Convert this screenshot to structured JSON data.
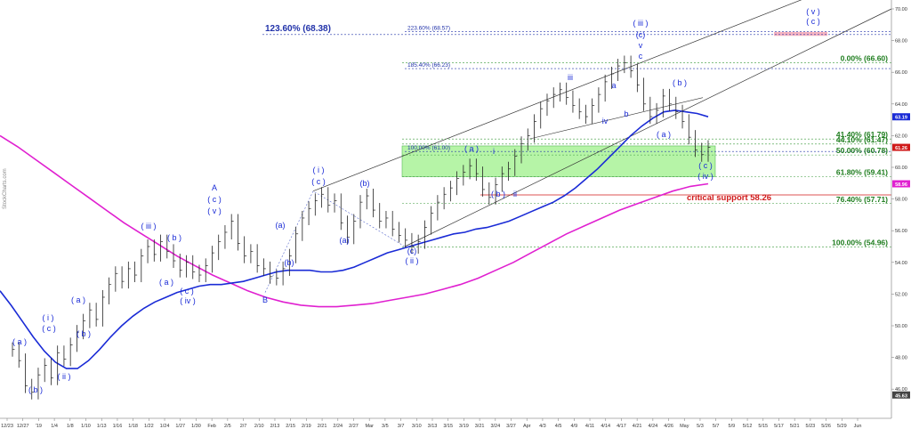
{
  "chart_data": {
    "type": "line",
    "ylim": [
      45,
      70
    ],
    "grid": false,
    "watermark": "StockCharts.com",
    "y_ticks": [
      "70.00",
      "68.00",
      "66.00",
      "64.00",
      "62.00",
      "60.00",
      "58.00",
      "56.00",
      "54.00",
      "52.00",
      "50.00",
      "48.00",
      "46.00"
    ],
    "x_ticks": [
      "12/23",
      "12/27",
      "'19",
      "1/4",
      "1/8",
      "1/10",
      "1/13",
      "1/16",
      "1/18",
      "1/22",
      "1/24",
      "1/27",
      "1/30",
      "Feb",
      "2/5",
      "2/7",
      "2/10",
      "2/13",
      "2/15",
      "2/19",
      "2/21",
      "2/24",
      "2/27",
      "Mar",
      "3/5",
      "3/7",
      "3/10",
      "3/13",
      "3/15",
      "3/19",
      "3/21",
      "3/24",
      "3/27",
      "Apr",
      "4/3",
      "4/5",
      "4/9",
      "4/11",
      "4/14",
      "4/17",
      "4/21",
      "4/24",
      "4/26",
      "May",
      "5/3",
      "5/7",
      "5/9",
      "5/12",
      "5/15",
      "5/17",
      "5/21",
      "5/23",
      "5/26",
      "5/29",
      "Jun"
    ],
    "price_tags": [
      {
        "text": "63.19",
        "value": 63.19,
        "color": "#1a2bd6"
      },
      {
        "text": "61.26",
        "value": 61.26,
        "color": "#d01a1a"
      },
      {
        "text": "58.96",
        "value": 58.96,
        "color": "#e020d0"
      },
      {
        "text": "45.63",
        "value": 45.63,
        "color": "#444444"
      }
    ],
    "fib_levels_right": [
      {
        "text": "0.00% (66.60)",
        "value": 66.6
      },
      {
        "text": "41.40% (61.79)",
        "value": 61.79
      },
      {
        "text": "44.10% (61.47)",
        "value": 61.47
      },
      {
        "text": "50.00% (60.78)",
        "value": 60.78
      },
      {
        "text": "61.80% (59.41)",
        "value": 59.41
      },
      {
        "text": "76.40% (57.71)",
        "value": 57.71
      },
      {
        "text": "100.00% (54.96)",
        "value": 54.96
      }
    ],
    "fib_levels_blue": [
      {
        "text": "223.60% (68.57)",
        "value": 68.57
      },
      {
        "text": "185.40% (66.23)",
        "value": 66.23
      },
      {
        "text": "100.00% (61.00)",
        "value": 61.0
      }
    ],
    "big_label": "123.60% (68.38)",
    "critical_support": {
      "text": "critical support 58.26",
      "value": 58.26
    },
    "series": [
      {
        "name": "price",
        "color": "#222222",
        "values": [
          48.5,
          47.8,
          46.2,
          45.8,
          46.9,
          47.5,
          46.7,
          48.3,
          47.9,
          48.8,
          49.6,
          50.3,
          51.0,
          50.4,
          51.8,
          52.6,
          53.3,
          52.8,
          53.6,
          53.2,
          54.4,
          55.0,
          54.5,
          55.3,
          54.7,
          54.1,
          53.5,
          54.0,
          53.4,
          53.2,
          53.8,
          54.6,
          55.3,
          55.9,
          56.6,
          55.2,
          54.4,
          54.7,
          53.8,
          53.6,
          53.1,
          53.0,
          53.6,
          54.4,
          55.8,
          56.8,
          57.4,
          57.9,
          58.3,
          57.6,
          57.9,
          56.5,
          55.6,
          56.6,
          57.8,
          58.2,
          57.3,
          56.6,
          56.8,
          56.1,
          55.7,
          55.4,
          55.0,
          55.3,
          56.2,
          57.1,
          57.8,
          58.3,
          58.7,
          59.3,
          59.7,
          60.1,
          59.6,
          58.6,
          58.1,
          58.9,
          59.6,
          59.9,
          60.7,
          61.5,
          62.0,
          62.9,
          63.7,
          64.2,
          64.6,
          64.9,
          64.4,
          63.9,
          63.5,
          63.2,
          63.9,
          64.6,
          65.4,
          65.9,
          66.4,
          66.6,
          66.1,
          65.2,
          64.0,
          63.2,
          63.6,
          64.5,
          64.0,
          63.5,
          62.9,
          61.9,
          61.1,
          60.8,
          61.26
        ]
      },
      {
        "name": "ma50",
        "color": "#1a2bd6",
        "values": [
          52.2,
          51.3,
          50.3,
          49.3,
          48.4,
          47.7,
          47.3,
          47.3,
          47.8,
          48.5,
          49.3,
          50.0,
          50.6,
          51.1,
          51.5,
          51.8,
          52.1,
          52.3,
          52.5,
          52.6,
          52.6,
          52.7,
          52.8,
          53.0,
          53.2,
          53.4,
          53.5,
          53.5,
          53.5,
          53.4,
          53.4,
          53.5,
          53.7,
          54.0,
          54.3,
          54.6,
          54.8,
          55.0,
          55.2,
          55.4,
          55.6,
          55.8,
          55.9,
          56.1,
          56.2,
          56.4,
          56.6,
          56.9,
          57.2,
          57.5,
          57.8,
          58.2,
          58.7,
          59.3,
          59.9,
          60.6,
          61.3,
          62.0,
          62.6,
          63.1,
          63.5,
          63.6,
          63.5,
          63.4,
          63.19
        ]
      },
      {
        "name": "ma200",
        "color": "#e020d0",
        "values": [
          62.0,
          61.3,
          60.5,
          59.7,
          58.9,
          58.1,
          57.3,
          56.5,
          55.8,
          55.1,
          54.4,
          53.8,
          53.2,
          52.7,
          52.2,
          51.8,
          51.5,
          51.3,
          51.2,
          51.2,
          51.3,
          51.4,
          51.6,
          51.8,
          52.0,
          52.3,
          52.6,
          53.0,
          53.5,
          54.0,
          54.6,
          55.2,
          55.8,
          56.3,
          56.8,
          57.3,
          57.7,
          58.1,
          58.5,
          58.8,
          58.96
        ]
      }
    ],
    "wave_labels": [
      {
        "text": "( a )",
        "color": "blue"
      },
      {
        "text": "( b )",
        "color": "blue"
      },
      {
        "text": "( i )",
        "color": "blue"
      },
      {
        "text": "( c )",
        "color": "blue"
      },
      {
        "text": "( ii )",
        "color": "blue"
      },
      {
        "text": "( a )",
        "color": "blue"
      },
      {
        "text": "( b )",
        "color": "blue"
      },
      {
        "text": "( iii )",
        "color": "blue"
      },
      {
        "text": "( b )",
        "color": "blue"
      },
      {
        "text": "( a )",
        "color": "blue"
      },
      {
        "text": "( c )",
        "color": "blue"
      },
      {
        "text": "( iv )",
        "color": "blue"
      },
      {
        "text": "A",
        "color": "blue"
      },
      {
        "text": "( c )",
        "color": "blue"
      },
      {
        "text": "( v )",
        "color": "blue"
      },
      {
        "text": "B",
        "color": "blue"
      },
      {
        "text": "(a)",
        "color": "blue"
      },
      {
        "text": "(b)",
        "color": "blue"
      },
      {
        "text": "( i )",
        "color": "blue"
      },
      {
        "text": "( c )",
        "color": "blue"
      },
      {
        "text": "(a)",
        "color": "blue"
      },
      {
        "text": "(b)",
        "color": "blue"
      },
      {
        "text": "(c)",
        "color": "blue"
      },
      {
        "text": "( ii )",
        "color": "blue"
      },
      {
        "text": "( a )",
        "color": "blue"
      },
      {
        "text": "i",
        "color": "blue"
      },
      {
        "text": "( b )",
        "color": "blue"
      },
      {
        "text": "ii",
        "color": "blue"
      },
      {
        "text": "iii",
        "color": "blue"
      },
      {
        "text": "a",
        "color": "blue"
      },
      {
        "text": "iv",
        "color": "blue"
      },
      {
        "text": "b",
        "color": "blue"
      },
      {
        "text": "( iii )",
        "color": "blue"
      },
      {
        "text": "(c)",
        "color": "blue"
      },
      {
        "text": "v",
        "color": "blue"
      },
      {
        "text": "c",
        "color": "blue"
      },
      {
        "text": "( b )",
        "color": "blue"
      },
      {
        "text": "( a )",
        "color": "blue"
      },
      {
        "text": "( c )",
        "color": "blue"
      },
      {
        "text": "( iv )",
        "color": "blue"
      },
      {
        "text": "( v )",
        "color": "blue"
      },
      {
        "text": "( c )",
        "color": "blue"
      }
    ]
  }
}
